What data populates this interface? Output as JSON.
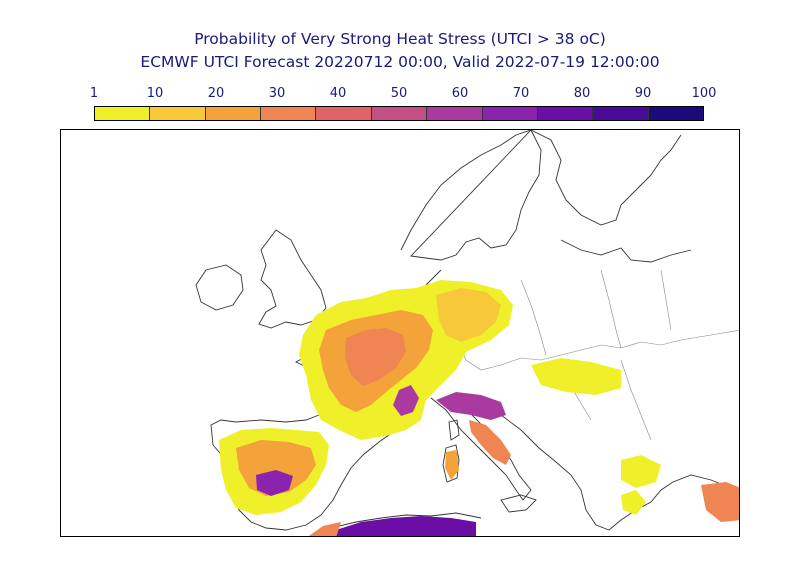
{
  "title": {
    "line1": "Probability of Very Strong Heat Stress (UTCI > 38 oC)",
    "line2": "ECMWF UTCI Forecast 20220712 00:00, Valid 2022-07-19 12:00:00"
  },
  "colorbar": {
    "ticks": [
      "1",
      "10",
      "20",
      "30",
      "40",
      "50",
      "60",
      "70",
      "80",
      "90",
      "100"
    ],
    "colors": [
      "#f0f02a",
      "#f6c83a",
      "#f4a23a",
      "#ef8552",
      "#e06466",
      "#c44f86",
      "#aa3aa0",
      "#8a23ad",
      "#6a0ea6",
      "#4a0a98",
      "#1a0a7a"
    ]
  }
}
